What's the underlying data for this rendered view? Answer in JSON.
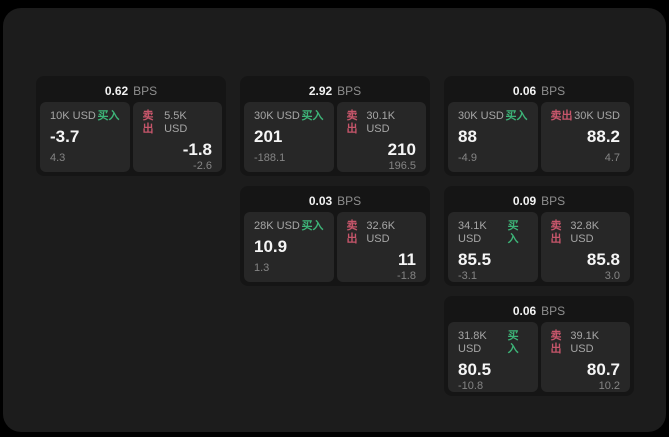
{
  "colors": {
    "frame_bg": "#1c1c1c",
    "card_bg": "#151515",
    "tile_bg": "#272727",
    "buy_green": "#3db478",
    "sell_red": "#c7566b"
  },
  "labels": {
    "bps_unit": "BPS",
    "buy": "买入",
    "sell": "卖出"
  },
  "cards": [
    {
      "row": 1,
      "col": 1,
      "bps": "0.62",
      "buy": {
        "amount": "10K USD",
        "price": "-3.7",
        "delta": "4.3"
      },
      "sell": {
        "amount": "5.5K USD",
        "price": "-1.8",
        "delta": "-2.6"
      }
    },
    {
      "row": 1,
      "col": 2,
      "bps": "2.92",
      "buy": {
        "amount": "30K USD",
        "price": "201",
        "delta": "-188.1"
      },
      "sell": {
        "amount": "30.1K USD",
        "price": "210",
        "delta": "196.5"
      }
    },
    {
      "row": 1,
      "col": 3,
      "bps": "0.06",
      "buy": {
        "amount": "30K USD",
        "price": "88",
        "delta": "-4.9"
      },
      "sell": {
        "amount": "30K USD",
        "price": "88.2",
        "delta": "4.7"
      }
    },
    {
      "row": 2,
      "col": 2,
      "bps": "0.03",
      "buy": {
        "amount": "28K USD",
        "price": "10.9",
        "delta": "1.3"
      },
      "sell": {
        "amount": "32.6K USD",
        "price": "11",
        "delta": "-1.8"
      }
    },
    {
      "row": 2,
      "col": 3,
      "bps": "0.09",
      "buy": {
        "amount": "34.1K USD",
        "price": "85.5",
        "delta": "-3.1"
      },
      "sell": {
        "amount": "32.8K USD",
        "price": "85.8",
        "delta": "3.0"
      }
    },
    {
      "row": 3,
      "col": 3,
      "bps": "0.06",
      "buy": {
        "amount": "31.8K USD",
        "price": "80.5",
        "delta": "-10.8"
      },
      "sell": {
        "amount": "39.1K USD",
        "price": "80.7",
        "delta": "10.2"
      }
    }
  ]
}
